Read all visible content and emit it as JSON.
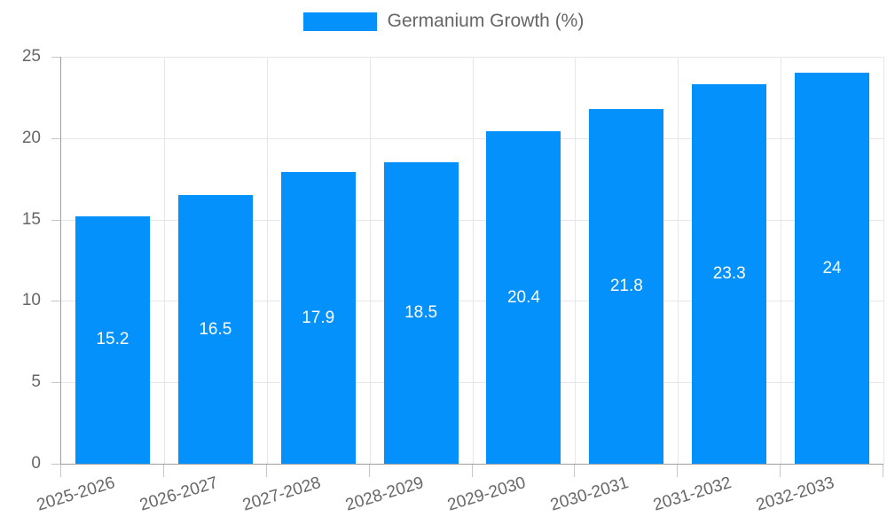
{
  "legend": {
    "label": "Germanium Growth (%)"
  },
  "colors": {
    "bar": "#0591fb",
    "grid": "#e6e6e6",
    "axis": "#9e9e9e",
    "tick_text": "#666666",
    "value_label": "#ffffff",
    "legend_text": "#666666",
    "background": "#ffffff"
  },
  "chart_data": {
    "type": "bar",
    "title": "",
    "series_name": "Germanium Growth (%)",
    "categories": [
      "2025-2026",
      "2026-2027",
      "2027-2028",
      "2028-2029",
      "2029-2030",
      "2030-2031",
      "2031-2032",
      "2032-2033"
    ],
    "values": [
      15.2,
      16.5,
      17.9,
      18.5,
      20.4,
      21.8,
      23.3,
      24
    ],
    "xlabel": "",
    "ylabel": "",
    "ylim": [
      0,
      25
    ],
    "yticks": [
      0,
      5,
      10,
      15,
      20,
      25
    ],
    "grid": true,
    "legend_position": "top",
    "value_label_position": "inside-center",
    "x_label_rotation_deg": -17
  }
}
